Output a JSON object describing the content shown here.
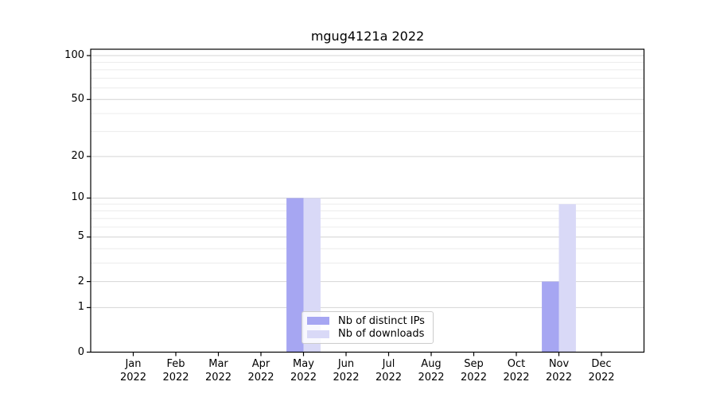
{
  "chart_data": {
    "type": "bar",
    "title": "mgug4121a 2022",
    "categories": [
      "Jan",
      "Feb",
      "Mar",
      "Apr",
      "May",
      "Jun",
      "Jul",
      "Aug",
      "Sep",
      "Oct",
      "Nov",
      "Dec"
    ],
    "year": "2022",
    "series": [
      {
        "name": "Nb of distinct IPs",
        "color": "#a6a6f2",
        "values": [
          0,
          0,
          0,
          0,
          10,
          0,
          0,
          0,
          0,
          0,
          2,
          0
        ]
      },
      {
        "name": "Nb of downloads",
        "color": "#d9d9f7",
        "values": [
          0,
          0,
          0,
          0,
          10,
          0,
          0,
          0,
          0,
          0,
          9,
          0
        ]
      }
    ],
    "xlabel": "",
    "ylabel": "",
    "y_scale": "log1p",
    "y_ticks": [
      0,
      1,
      2,
      5,
      10,
      20,
      50,
      100
    ],
    "y_minor_ticks": [
      3,
      4,
      6,
      7,
      8,
      9,
      30,
      40,
      60,
      70,
      80,
      90
    ],
    "ylim": [
      0,
      110
    ],
    "grid": true,
    "legend_position": "lower center",
    "axis_color": "#000000",
    "grid_major_color": "#d4d4d4",
    "grid_minor_color": "#ececec"
  }
}
